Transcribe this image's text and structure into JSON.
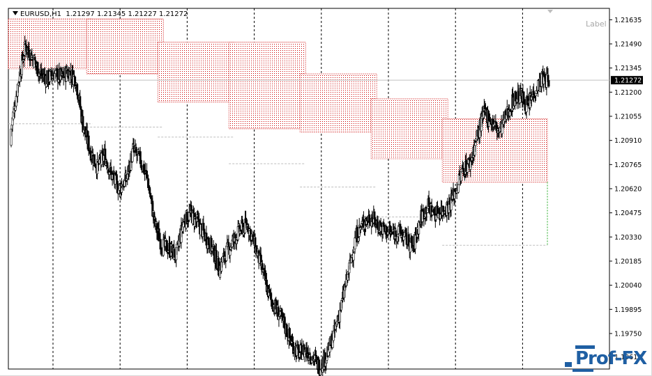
{
  "header": {
    "symbol": "EURUSD",
    "timeframe": "H1",
    "open": "1.21297",
    "high": "1.21345",
    "low": "1.21227",
    "close": "1.21272"
  },
  "label_text": "Label",
  "current_price_label": "1.21272",
  "logo_text": "Prof-FX",
  "colors": {
    "bull_candle": "#000000",
    "bear_candle": "#000000",
    "zone_fill": "#cc0000",
    "zone_outline": "#e06060",
    "gray_level": "#bdbdbd",
    "green_line": "#22aa22",
    "grid_dashed": "#000000",
    "bid_line": "#c0c0c0"
  },
  "chart_data": {
    "type": "candlestick",
    "symbol": "EURUSD",
    "timeframe": "H1",
    "y_ticks": [
      "1.21635",
      "1.21490",
      "1.21345",
      "1.21200",
      "1.21055",
      "1.20910",
      "1.20765",
      "1.20620",
      "1.20475",
      "1.20330",
      "1.20185",
      "1.20040",
      "1.19895",
      "1.19750",
      "1.19610"
    ],
    "ylim": [
      1.1955,
      1.2168
    ],
    "current_price": 1.21272,
    "session_separators": 8,
    "close_path": [
      1.2098,
      1.2127,
      1.2148,
      1.2141,
      1.2131,
      1.2128,
      1.2131,
      1.2129,
      1.2132,
      1.2128,
      1.21,
      1.2085,
      1.2075,
      1.2082,
      1.207,
      1.2062,
      1.2067,
      1.2085,
      1.2079,
      1.2068,
      1.2041,
      1.2028,
      1.2026,
      1.2022,
      1.2042,
      1.2047,
      1.2041,
      1.2034,
      1.2026,
      1.2014,
      1.2024,
      1.2031,
      1.2038,
      1.204,
      1.2027,
      1.2013,
      1.1997,
      1.1989,
      1.1981,
      1.197,
      1.1963,
      1.1965,
      1.1961,
      1.1955,
      1.1962,
      1.1975,
      1.1992,
      1.2012,
      1.2033,
      1.2041,
      1.2045,
      1.2041,
      1.2037,
      1.2035,
      1.2036,
      1.2032,
      1.2027,
      1.2044,
      1.2052,
      1.2047,
      1.2049,
      1.2052,
      1.2062,
      1.2074,
      1.2078,
      1.2095,
      1.2108,
      1.2102,
      1.2096,
      1.2106,
      1.2116,
      1.2118,
      1.2111,
      1.2122,
      1.2128,
      1.2127
    ],
    "zones": [
      {
        "from_bar": 0,
        "to_bar": 11,
        "top": 1.2164,
        "bottom": 1.2134
      },
      {
        "from_bar": 11,
        "to_bar": 21,
        "top": 1.2164,
        "bottom": 1.2131
      },
      {
        "from_bar": 21,
        "to_bar": 31,
        "top": 1.215,
        "bottom": 1.2114
      },
      {
        "from_bar": 31,
        "to_bar": 41,
        "top": 1.215,
        "bottom": 1.2098
      },
      {
        "from_bar": 41,
        "to_bar": 51,
        "top": 1.2131,
        "bottom": 1.2096
      },
      {
        "from_bar": 51,
        "to_bar": 61,
        "top": 1.2116,
        "bottom": 1.208
      },
      {
        "from_bar": 61,
        "to_bar": 75,
        "top": 1.2104,
        "bottom": 1.2066
      }
    ],
    "gray_levels": [
      {
        "from_bar": 0,
        "to_bar": 11,
        "price": 1.2101
      },
      {
        "from_bar": 11,
        "to_bar": 21,
        "price": 1.2099
      },
      {
        "from_bar": 21,
        "to_bar": 31,
        "price": 1.2093
      },
      {
        "from_bar": 31,
        "to_bar": 41,
        "price": 1.2077
      },
      {
        "from_bar": 41,
        "to_bar": 51,
        "price": 1.2063
      },
      {
        "from_bar": 51,
        "to_bar": 61,
        "price": 1.2045
      },
      {
        "from_bar": 61,
        "to_bar": 75,
        "price": 1.2028
      }
    ]
  }
}
